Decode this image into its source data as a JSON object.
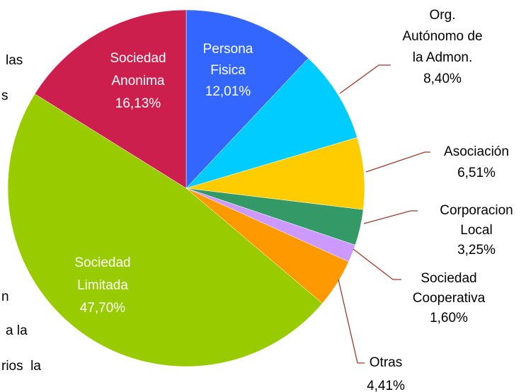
{
  "chart_data": {
    "type": "pie",
    "categories": [
      [
        "Persona",
        "Fisica"
      ],
      [
        "Org.",
        "Autónomo de",
        "la Admon."
      ],
      [
        "Asociación"
      ],
      [
        "Corporacion",
        "Local"
      ],
      [
        "Sociedad",
        "Cooperativa"
      ],
      [
        "Otras"
      ],
      [
        "Sociedad",
        "Limitada"
      ],
      [
        "Sociedad",
        "Anonima"
      ]
    ],
    "values": [
      12.01,
      8.4,
      6.51,
      3.25,
      1.6,
      4.41,
      47.7,
      16.13
    ],
    "value_labels": [
      "12,01%",
      "8,40%",
      "6,51%",
      "3,25%",
      "1,60%",
      "4,41%",
      "47,70%",
      "16,13%"
    ],
    "colors": [
      "#3366ff",
      "#00ccff",
      "#ffcc00",
      "#339966",
      "#cc99ff",
      "#ff9900",
      "#99cc00",
      "#cc1f4e"
    ]
  },
  "background_text": [
    "las",
    "s",
    "n",
    "a la",
    "rios  la"
  ]
}
